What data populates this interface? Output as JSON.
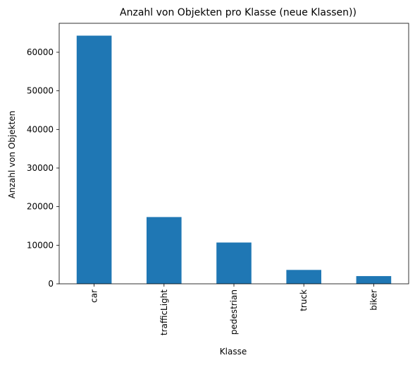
{
  "chart_data": {
    "type": "bar",
    "title": "Anzahl von Objekten pro Klasse (neue Klassen))",
    "xlabel": "Klasse",
    "ylabel": "Anzahl von Objekten",
    "categories": [
      "car",
      "trafficLight",
      "pedestrian",
      "truck",
      "biker"
    ],
    "values": [
      64300,
      17300,
      10700,
      3600,
      2000
    ],
    "ylim": [
      0,
      67500
    ],
    "yticks": [
      0,
      10000,
      20000,
      30000,
      40000,
      50000,
      60000
    ],
    "grid": false,
    "legend": "none",
    "bar_color": "#1f77b4"
  }
}
